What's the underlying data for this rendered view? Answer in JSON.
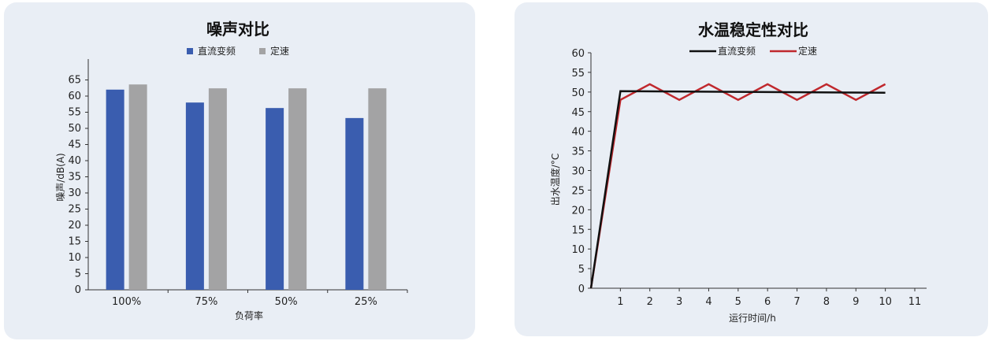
{
  "chart_data": [
    {
      "type": "bar",
      "title": "噪声对比",
      "xlabel": "负荷率",
      "ylabel": "噪声/dB(A)",
      "categories": [
        "100%",
        "75%",
        "50%",
        "25%"
      ],
      "series": [
        {
          "name": "直流变频",
          "color": "#3a5daf",
          "values": [
            62,
            58,
            56.3,
            53.2
          ]
        },
        {
          "name": "定速",
          "color": "#a3a3a4",
          "values": [
            63.6,
            62.4,
            62.4,
            62.4
          ]
        }
      ],
      "ylim": [
        0,
        70
      ],
      "yticks": [
        0,
        5,
        10,
        15,
        20,
        25,
        30,
        35,
        40,
        45,
        50,
        55,
        60,
        65
      ],
      "grid": false,
      "legend": "top-center"
    },
    {
      "type": "line",
      "title": "水温稳定性对比",
      "xlabel": "运行时间/h",
      "ylabel": "出水温度/°C",
      "xlim": [
        0,
        11
      ],
      "xticks": [
        1,
        2,
        3,
        4,
        5,
        6,
        7,
        8,
        9,
        10,
        11
      ],
      "ylim": [
        0,
        60
      ],
      "yticks": [
        0,
        5,
        10,
        15,
        20,
        25,
        30,
        35,
        40,
        45,
        50,
        55,
        60
      ],
      "series": [
        {
          "name": "直流变频",
          "color": "#111111",
          "points": [
            [
              0,
              0
            ],
            [
              1,
              50.2
            ],
            [
              10,
              49.8
            ]
          ]
        },
        {
          "name": "定速",
          "color": "#c0282d",
          "points": [
            [
              0,
              0
            ],
            [
              1,
              48
            ],
            [
              2,
              52
            ],
            [
              3,
              48
            ],
            [
              4,
              52
            ],
            [
              5,
              48
            ],
            [
              6,
              52
            ],
            [
              7,
              48
            ],
            [
              8,
              52
            ],
            [
              9,
              48
            ],
            [
              10,
              52
            ]
          ]
        }
      ],
      "grid": false,
      "legend": "top-center"
    }
  ]
}
